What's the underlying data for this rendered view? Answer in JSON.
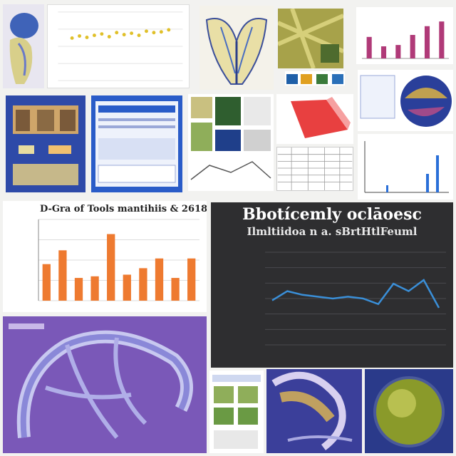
{
  "collage": {
    "orange_bar_chart": {
      "title": "D-Gra of Tools mantihiis & 2618",
      "chart_data": {
        "type": "bar",
        "categories": [
          "",
          "",
          "",
          "",
          "",
          "",
          "",
          "",
          "",
          ""
        ],
        "values": [
          45,
          62,
          28,
          30,
          82,
          32,
          40,
          52,
          28,
          52
        ],
        "ylim": [
          0,
          100
        ],
        "grid": true,
        "color": "#ee7a30"
      }
    },
    "dark_line_chart": {
      "headline_1": "Bbotícemly oclāoesc",
      "headline_2": "Ilmltiidoa n a. sBrtHtlFeuml",
      "chart_data": {
        "type": "line",
        "x": [
          1,
          2,
          3,
          4,
          5,
          6,
          7,
          8,
          9,
          10,
          11,
          12
        ],
        "values": [
          48,
          58,
          54,
          52,
          50,
          52,
          50,
          44,
          66,
          58,
          70,
          40
        ],
        "ylim": [
          0,
          100
        ],
        "grid": true,
        "color": "#3a8fd8"
      }
    },
    "small_bar_chart": {
      "chart_data": {
        "type": "bar",
        "categories": [
          "",
          "",
          "",
          "",
          "",
          ""
        ],
        "values": [
          32,
          18,
          20,
          35,
          48,
          55
        ],
        "ylim": [
          0,
          70
        ],
        "color": "#b03a78"
      }
    },
    "top_scatter_chart": {
      "chart_data": {
        "type": "scatter",
        "x": [
          1,
          2,
          3,
          4,
          5,
          6,
          7,
          8,
          9,
          10,
          11,
          12,
          13,
          14
        ],
        "values": [
          62,
          65,
          63,
          66,
          68,
          64,
          70,
          67,
          69,
          66,
          72,
          70,
          71,
          74
        ],
        "ylim": [
          0,
          100
        ],
        "color": "#e0c02a"
      }
    },
    "colors": {
      "purple": "#7a58b8",
      "navy": "#1e3a8a",
      "dark": "#2e2e30",
      "orange": "#ee7a30"
    }
  }
}
